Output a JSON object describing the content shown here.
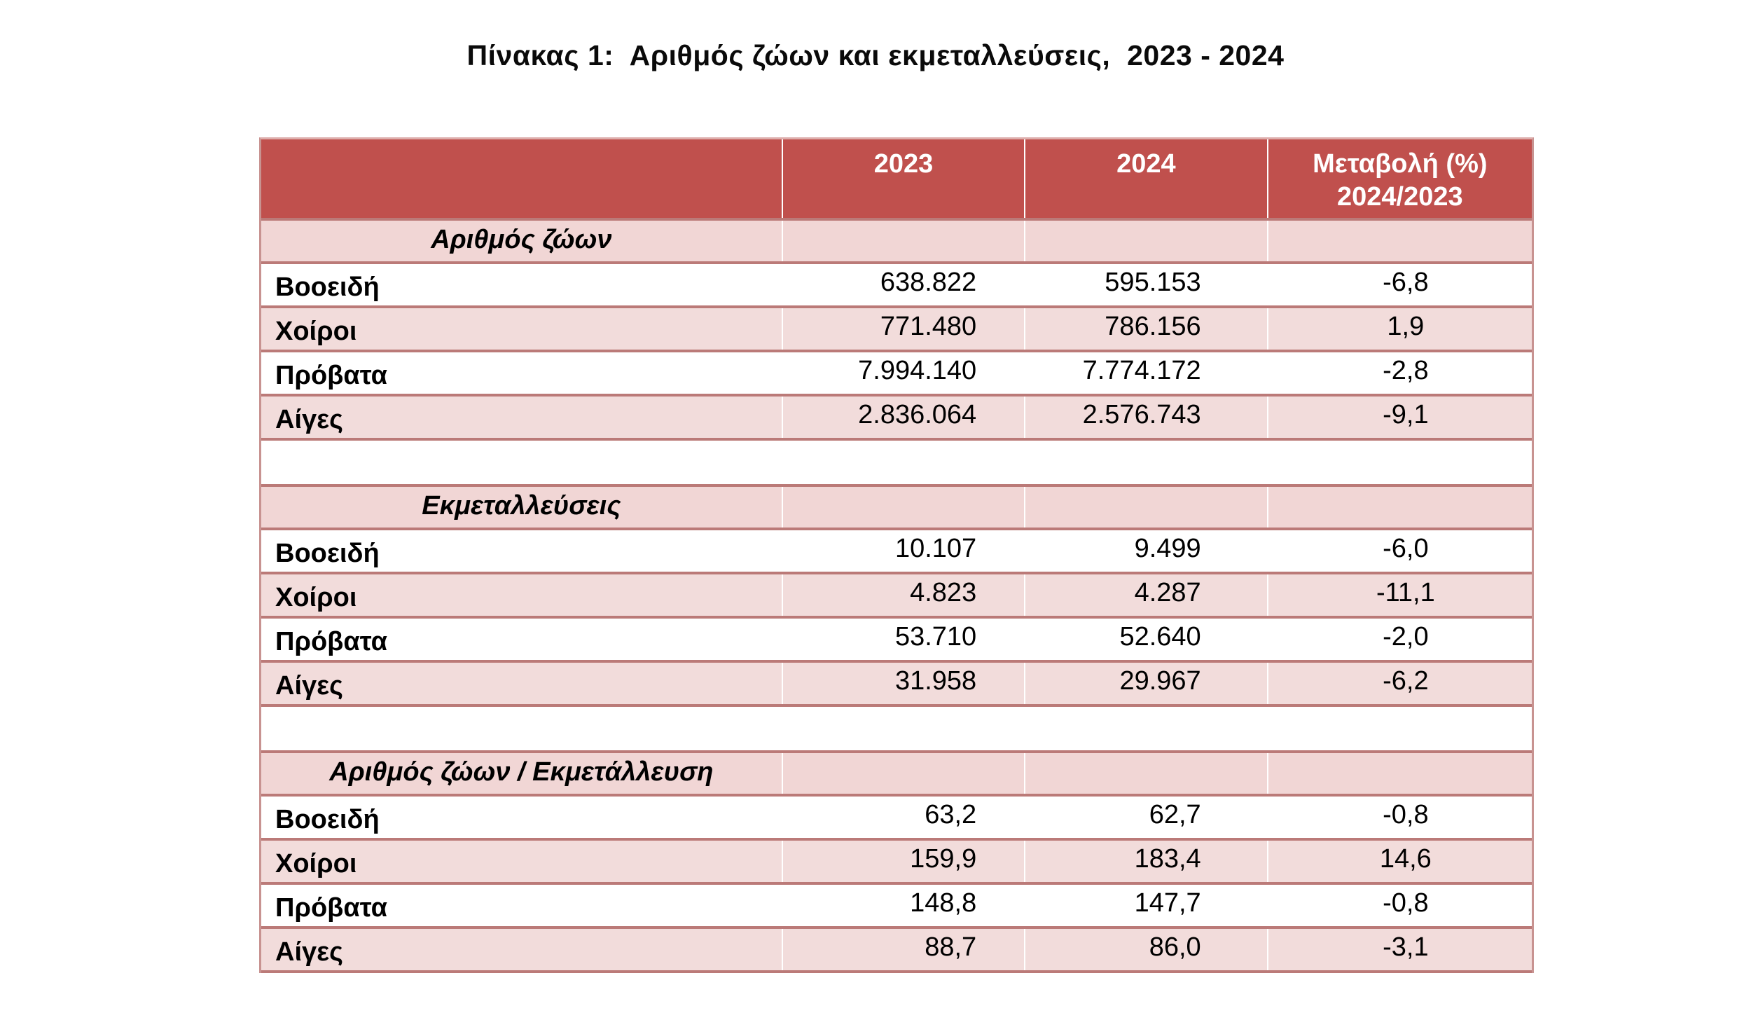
{
  "page": {
    "title": "Πίνακας 1:  Αριθμός ζώων και εκμεταλλεύσεις,  2023 - 2024"
  },
  "colors": {
    "header_bg": "#c0504d",
    "header_text": "#ffffff",
    "row_pink": "#f2dcdb",
    "section_pink": "#f1d6d5",
    "grid_border": "#bb7a78",
    "text": "#000000"
  },
  "table": {
    "header": {
      "label": "",
      "y2023": "2023",
      "y2024": "2024",
      "change_line1": "Μεταβολή (%)",
      "change_line2": "2024/2023"
    },
    "sections": [
      {
        "title": "Αριθμός ζώων",
        "rows": [
          {
            "label": "Βοοειδή",
            "y2023": "638.822",
            "y2024": "595.153",
            "change": "-6,8"
          },
          {
            "label": "Χοίροι",
            "y2023": "771.480",
            "y2024": "786.156",
            "change": "1,9"
          },
          {
            "label": "Πρόβατα",
            "y2023": "7.994.140",
            "y2024": "7.774.172",
            "change": "-2,8"
          },
          {
            "label": "Αίγες",
            "y2023": "2.836.064",
            "y2024": "2.576.743",
            "change": "-9,1"
          }
        ]
      },
      {
        "title": "Εκμεταλλεύσεις",
        "rows": [
          {
            "label": "Βοοειδή",
            "y2023": "10.107",
            "y2024": "9.499",
            "change": "-6,0"
          },
          {
            "label": "Χοίροι",
            "y2023": "4.823",
            "y2024": "4.287",
            "change": "-11,1"
          },
          {
            "label": "Πρόβατα",
            "y2023": "53.710",
            "y2024": "52.640",
            "change": "-2,0"
          },
          {
            "label": "Αίγες",
            "y2023": "31.958",
            "y2024": "29.967",
            "change": "-6,2"
          }
        ]
      },
      {
        "title": "Αριθμός ζώων / Εκμετάλλευση",
        "rows": [
          {
            "label": "Βοοειδή",
            "y2023": "63,2",
            "y2024": "62,7",
            "change": "-0,8"
          },
          {
            "label": "Χοίροι",
            "y2023": "159,9",
            "y2024": "183,4",
            "change": "14,6"
          },
          {
            "label": "Πρόβατα",
            "y2023": "148,8",
            "y2024": "147,7",
            "change": "-0,8"
          },
          {
            "label": "Αίγες",
            "y2023": "88,7",
            "y2024": "86,0",
            "change": "-3,1"
          }
        ]
      }
    ]
  }
}
